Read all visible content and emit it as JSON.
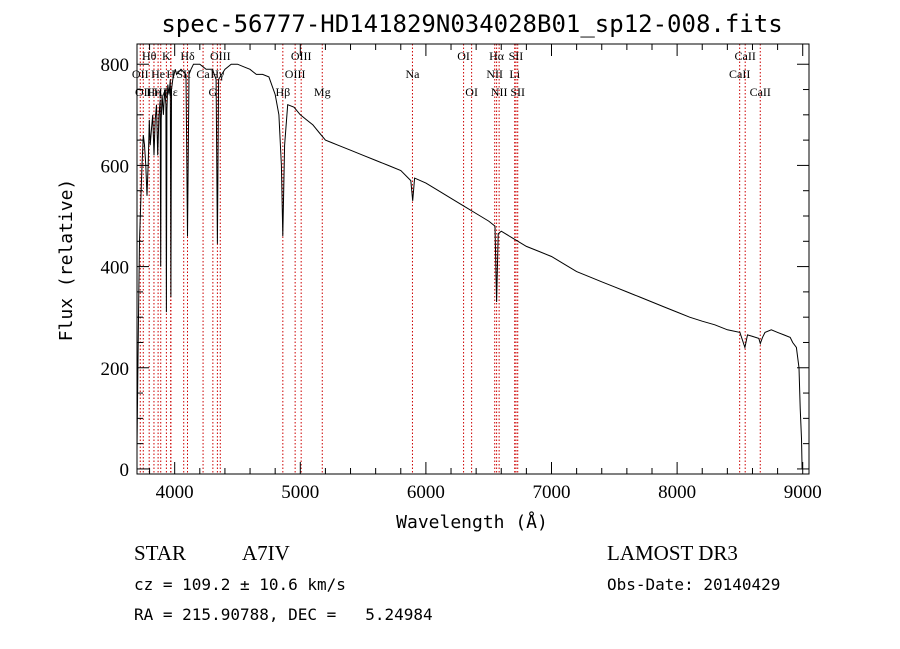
{
  "chart_data": {
    "type": "line",
    "title": "spec-56777-HD141829N034028B01_sp12-008.fits",
    "xlabel": "Wavelength (Å)",
    "ylabel": "Flux (relative)",
    "xlim": [
      3700,
      9050
    ],
    "ylim": [
      -10,
      840
    ],
    "xticks": [
      4000,
      5000,
      6000,
      7000,
      8000,
      9000
    ],
    "yticks": [
      0,
      200,
      400,
      600,
      800
    ],
    "series": [
      {
        "name": "spectrum",
        "x": [
          3700,
          3705,
          3712,
          3720,
          3730,
          3740,
          3750,
          3760,
          3770,
          3780,
          3790,
          3798,
          3805,
          3815,
          3825,
          3835,
          3845,
          3855,
          3865,
          3875,
          3885,
          3889,
          3893,
          3900,
          3910,
          3920,
          3930,
          3934,
          3938,
          3945,
          3955,
          3965,
          3970,
          3975,
          3985,
          3995,
          4005,
          4015,
          4050,
          4090,
          4102,
          4114,
          4130,
          4150,
          4200,
          4250,
          4300,
          4330,
          4340,
          4350,
          4400,
          4450,
          4500,
          4550,
          4600,
          4650,
          4700,
          4750,
          4800,
          4830,
          4850,
          4861,
          4875,
          4900,
          4950,
          5000,
          5050,
          5100,
          5150,
          5200,
          5250,
          5300,
          5400,
          5500,
          5600,
          5700,
          5800,
          5880,
          5895,
          5910,
          6000,
          6100,
          6200,
          6300,
          6400,
          6500,
          6550,
          6563,
          6576,
          6600,
          6700,
          6800,
          6900,
          7000,
          7100,
          7200,
          7300,
          7400,
          7500,
          7600,
          7700,
          7800,
          7900,
          8000,
          8100,
          8200,
          8300,
          8400,
          8500,
          8540,
          8560,
          8600,
          8650,
          8662,
          8680,
          8700,
          8750,
          8800,
          8850,
          8900,
          8920,
          8950,
          8970,
          8980,
          8990,
          8995
        ],
        "values": [
          40,
          150,
          300,
          450,
          530,
          600,
          660,
          640,
          600,
          540,
          610,
          690,
          640,
          670,
          700,
          620,
          690,
          720,
          620,
          700,
          730,
          400,
          690,
          740,
          700,
          750,
          720,
          310,
          710,
          760,
          740,
          770,
          340,
          750,
          770,
          780,
          790,
          780,
          790,
          780,
          460,
          780,
          790,
          800,
          800,
          790,
          790,
          770,
          445,
          770,
          790,
          800,
          800,
          795,
          790,
          780,
          780,
          775,
          740,
          700,
          600,
          460,
          640,
          720,
          715,
          700,
          690,
          680,
          665,
          650,
          645,
          640,
          630,
          620,
          610,
          600,
          590,
          570,
          530,
          575,
          565,
          550,
          535,
          520,
          505,
          490,
          480,
          330,
          465,
          470,
          455,
          440,
          430,
          420,
          405,
          390,
          380,
          370,
          360,
          350,
          340,
          330,
          320,
          310,
          300,
          292,
          285,
          275,
          270,
          240,
          265,
          262,
          258,
          248,
          260,
          270,
          275,
          270,
          265,
          260,
          250,
          240,
          200,
          120,
          60,
          0
        ]
      }
    ],
    "lines": [
      {
        "wl": 3726,
        "label": "OII",
        "tier": 1
      },
      {
        "wl": 3750,
        "label": "OII",
        "tier": 2
      },
      {
        "wl": 3797,
        "label": "Hθ",
        "tier": 0
      },
      {
        "wl": 3835,
        "label": "Hη",
        "tier": 2
      },
      {
        "wl": 3868,
        "label": "He",
        "tier": 1
      },
      {
        "wl": 3889,
        "label": "Hζ",
        "tier": 2
      },
      {
        "wl": 3934,
        "label": "K",
        "tier": 0
      },
      {
        "wl": 3968,
        "label": "H",
        "tier": 1
      },
      {
        "wl": 3970,
        "label": "Hε",
        "tier": 2
      },
      {
        "wl": 4072,
        "label": "SII",
        "tier": 1
      },
      {
        "wl": 4102,
        "label": "Hδ",
        "tier": 0
      },
      {
        "wl": 4226,
        "label": "Ca",
        "tier": 1
      },
      {
        "wl": 4304,
        "label": "G",
        "tier": 2
      },
      {
        "wl": 4340,
        "label": "Hγ",
        "tier": 1
      },
      {
        "wl": 4363,
        "label": "OIII",
        "tier": 0
      },
      {
        "wl": 4861,
        "label": "Hβ",
        "tier": 2
      },
      {
        "wl": 4959,
        "label": "OIII",
        "tier": 1
      },
      {
        "wl": 5007,
        "label": "OIII",
        "tier": 0
      },
      {
        "wl": 5175,
        "label": "Mg",
        "tier": 2
      },
      {
        "wl": 5893,
        "label": "Na",
        "tier": 1
      },
      {
        "wl": 6300,
        "label": "OI",
        "tier": 0
      },
      {
        "wl": 6364,
        "label": "OI",
        "tier": 2
      },
      {
        "wl": 6548,
        "label": "NII",
        "tier": 1
      },
      {
        "wl": 6563,
        "label": "Hα",
        "tier": 0
      },
      {
        "wl": 6583,
        "label": "NII",
        "tier": 2
      },
      {
        "wl": 6707,
        "label": "Li",
        "tier": 1
      },
      {
        "wl": 6717,
        "label": "SII",
        "tier": 0
      },
      {
        "wl": 6731,
        "label": "SII",
        "tier": 2
      },
      {
        "wl": 8498,
        "label": "CaII",
        "tier": 1
      },
      {
        "wl": 8542,
        "label": "CaII",
        "tier": 0
      },
      {
        "wl": 8662,
        "label": "CaII",
        "tier": 2
      }
    ],
    "grid": false
  },
  "info": {
    "object_class": "STAR",
    "subclass": "A7IV",
    "survey": "LAMOST DR3",
    "redshift": "cz = 109.2 ± 10.6 km/s",
    "obs_date": "Obs-Date: 20140429",
    "coords": "RA = 215.90788, DEC =   5.24984"
  },
  "colors": {
    "spectrum": "#000000",
    "line_marker": "#cc0000",
    "axes": "#000000"
  }
}
